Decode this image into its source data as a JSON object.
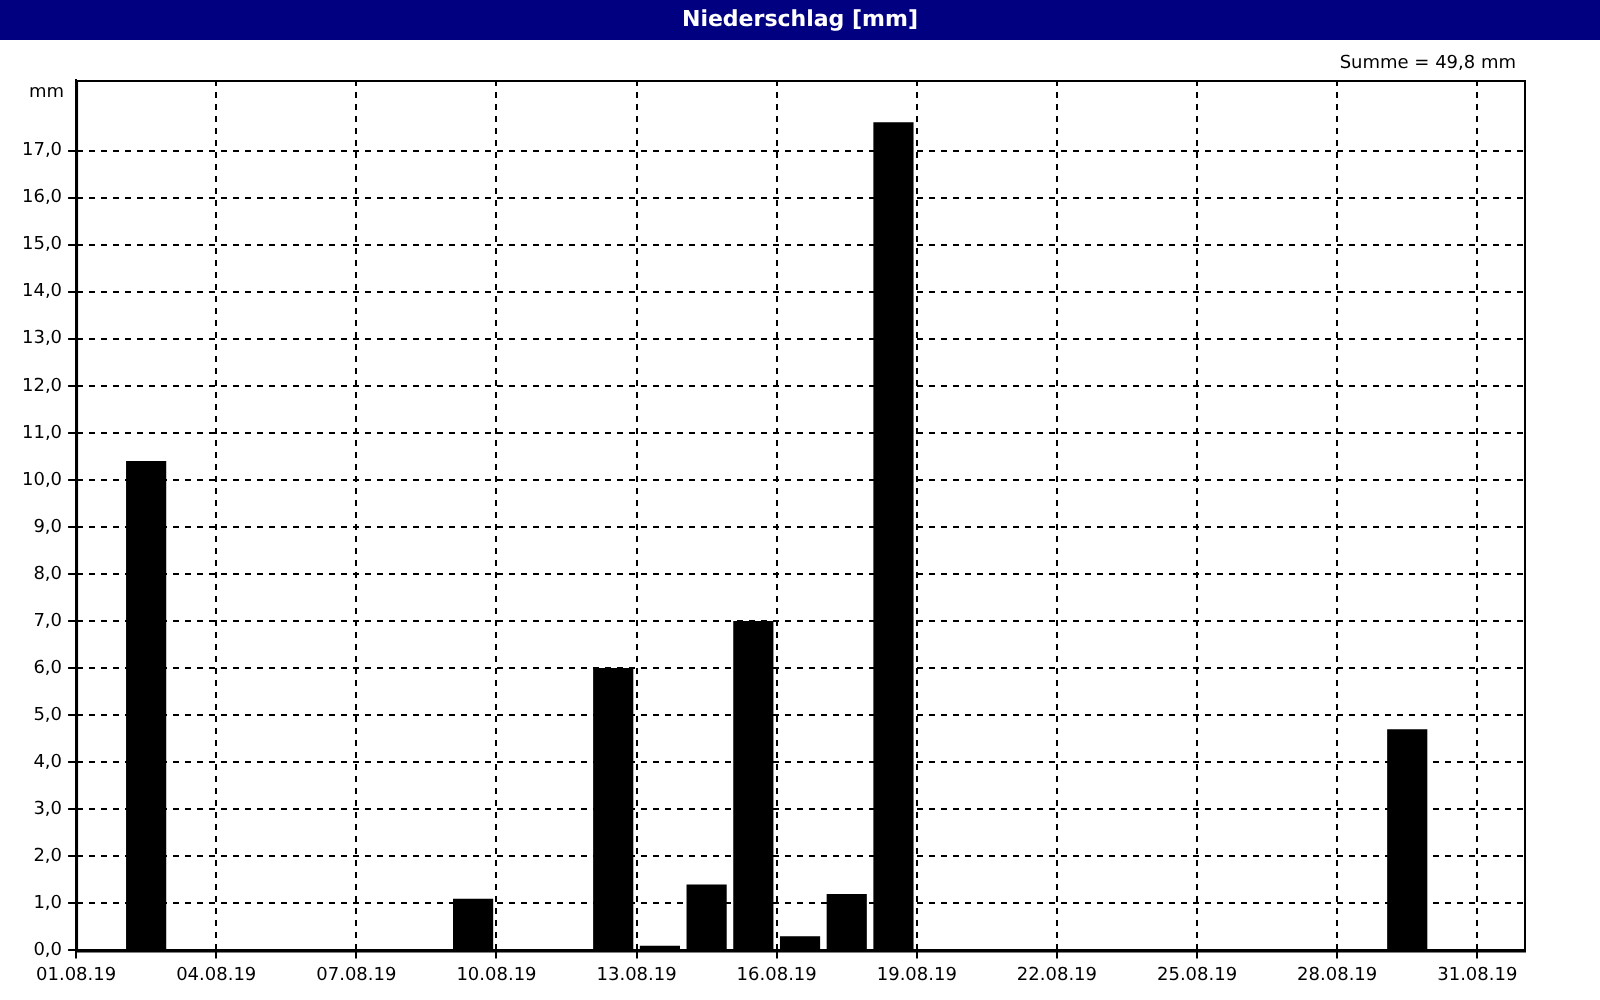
{
  "chart_data": {
    "type": "bar",
    "title": "Niederschlag [mm]",
    "ylabel": "mm",
    "annotations": [
      "Summe = 49,8 mm"
    ],
    "x": [
      "--08-02T12:00",
      "--08-09T12:00",
      "--08-12T12:00",
      "--08-13T12:00",
      "--08-14T12:00",
      "--08-15T12:00",
      "--08-16T12:00",
      "--08-17T12:00",
      "--08-18T12:00",
      "--08-29T12:00"
    ],
    "values": [
      10.4,
      1.1,
      6.0,
      0.1,
      1.4,
      7.0,
      0.3,
      1.2,
      17.6,
      4.7
    ],
    "color": "#000000",
    "xlim": [
      "--08-01",
      "--09-01"
    ],
    "xticks": [
      {
        "value": "--08-01",
        "label": "01.08.19"
      },
      {
        "value": "--08-04",
        "label": "04.08.19"
      },
      {
        "value": "--08-07",
        "label": "07.08.19"
      },
      {
        "value": "--08-10",
        "label": "10.08.19"
      },
      {
        "value": "--08-13",
        "label": "13.08.19"
      },
      {
        "value": "--08-16",
        "label": "16.08.19"
      },
      {
        "value": "--08-19",
        "label": "19.08.19"
      },
      {
        "value": "--08-22",
        "label": "22.08.19"
      },
      {
        "value": "--08-25",
        "label": "25.08.19"
      },
      {
        "value": "--08-28",
        "label": "28.08.19"
      },
      {
        "value": "--08-31",
        "label": "31.08.19"
      }
    ],
    "ylim": [
      0,
      18.5
    ],
    "yticks": [
      {
        "value": 0,
        "label": "0,0"
      },
      {
        "value": 1,
        "label": "1,0"
      },
      {
        "value": 2,
        "label": "2,0"
      },
      {
        "value": 3,
        "label": "3,0"
      },
      {
        "value": 4,
        "label": "4,0"
      },
      {
        "value": 5,
        "label": "5,0"
      },
      {
        "value": 6,
        "label": "6,0"
      },
      {
        "value": 7,
        "label": "7,0"
      },
      {
        "value": 8,
        "label": "8,0"
      },
      {
        "value": 9,
        "label": "9,0"
      },
      {
        "value": 10,
        "label": "10,0"
      },
      {
        "value": 11,
        "label": "11,0"
      },
      {
        "value": 12,
        "label": "12,0"
      },
      {
        "value": 13,
        "label": "13,0"
      },
      {
        "value": 14,
        "label": "14,0"
      },
      {
        "value": 15,
        "label": "15,0"
      },
      {
        "value": 16,
        "label": "16,0"
      },
      {
        "value": 17,
        "label": "17,0"
      }
    ],
    "grid": true,
    "legend": false
  }
}
